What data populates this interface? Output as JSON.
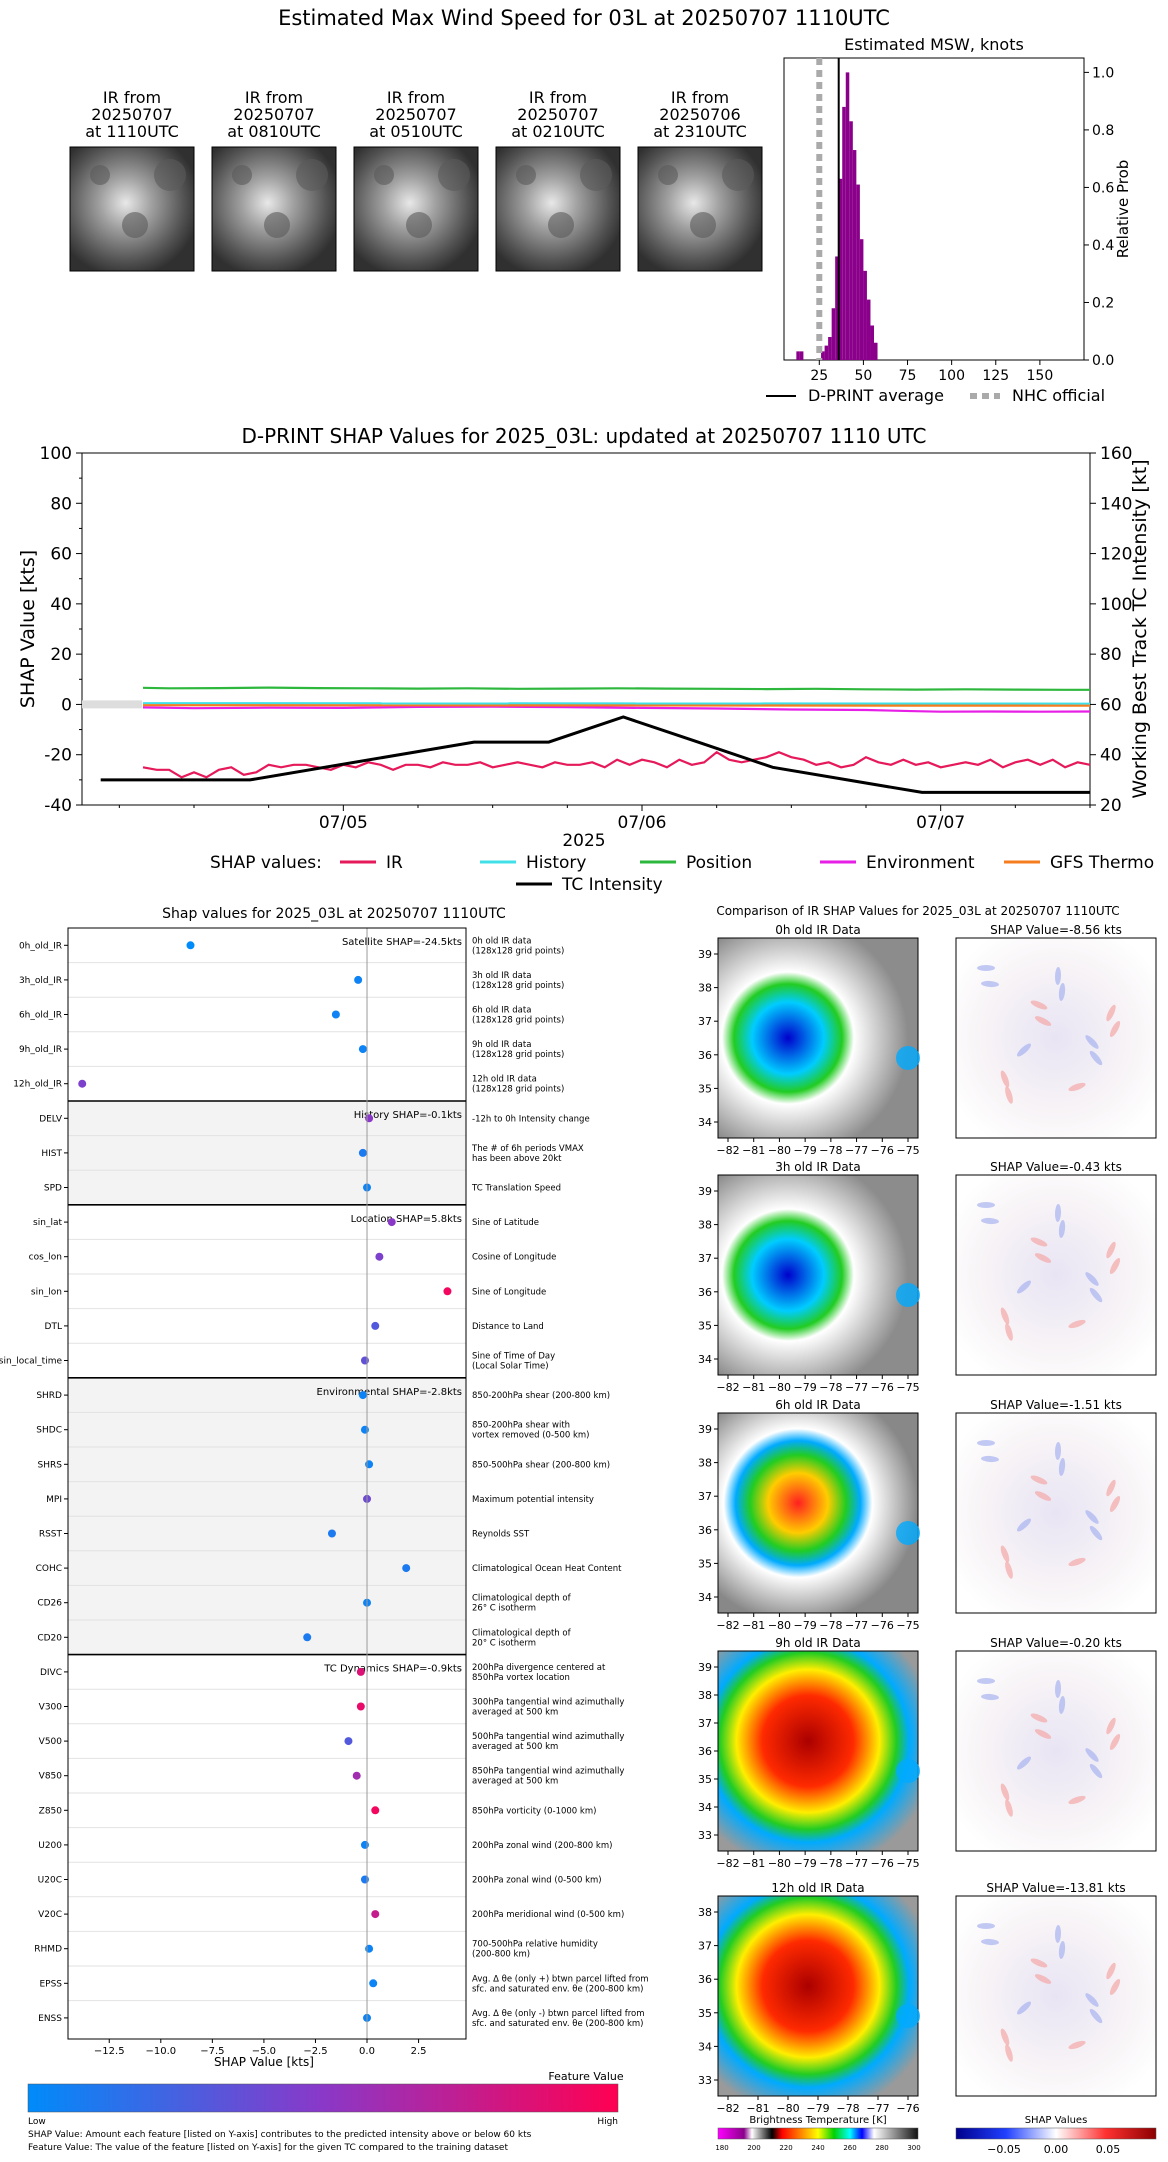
{
  "page_title": "Estimated Max Wind Speed for 03L at 20250707 1110UTC",
  "ir_thumbnails": [
    {
      "l1": "IR from",
      "l2": "20250707",
      "l3": "at 1110UTC"
    },
    {
      "l1": "IR from",
      "l2": "20250707",
      "l3": "at 0810UTC"
    },
    {
      "l1": "IR from",
      "l2": "20250707",
      "l3": "at 0510UTC"
    },
    {
      "l1": "IR from",
      "l2": "20250707",
      "l3": "at 0210UTC"
    },
    {
      "l1": "IR from",
      "l2": "20250706",
      "l3": "at 2310UTC"
    }
  ],
  "colors": {
    "IR": "#e6195a",
    "History": "#40e0e8",
    "Position": "#2db83d",
    "Environment": "#e61ee6",
    "GFS Thermo": "#f57c1f",
    "TC Intensity": "#000000",
    "histogram": "#8b008b",
    "nhc": "#aaaaaa"
  },
  "chart_data": [
    {
      "id": "msw_hist",
      "type": "bar",
      "title": "Estimated MSW, knots",
      "ylabel": "Relative Prob",
      "xlim": [
        5,
        175
      ],
      "ylim": [
        0,
        1.05
      ],
      "xticks": [
        25,
        50,
        75,
        100,
        125,
        150
      ],
      "yticks": [
        0.0,
        0.2,
        0.4,
        0.6,
        0.8,
        1.0
      ],
      "bin_width": 2,
      "bin_start": 27,
      "values": [
        0.03,
        0.05,
        0.08,
        0.18,
        0.36,
        0.63,
        0.88,
        1.0,
        0.83,
        0.73,
        0.61,
        0.42,
        0.31,
        0.21,
        0.12,
        0.06
      ],
      "extra_bars": [
        {
          "x": 13,
          "v": 0.03
        },
        {
          "x": 15,
          "v": 0.03
        }
      ],
      "dprint_average": 36,
      "nhc_official": 25,
      "legend": [
        "D-PRINT average",
        "NHC official"
      ]
    },
    {
      "id": "shap_ts",
      "type": "line",
      "title": "D-PRINT SHAP Values for 2025_03L: updated at 20250707 1110 UTC",
      "ylabel": "SHAP Value [kts]",
      "y2label": "Working Best Track TC Intensity [kt]",
      "xlabel": "2025",
      "xticklabels": [
        "07/05",
        "07/06",
        "07/07"
      ],
      "xtick_hours": [
        24,
        48,
        72
      ],
      "xlim_hours": [
        3,
        84
      ],
      "ylim": [
        -40,
        100
      ],
      "yticks": [
        -40,
        -20,
        0,
        20,
        40,
        60,
        80,
        100
      ],
      "y2lim": [
        20,
        160
      ],
      "y2ticks": [
        20,
        40,
        60,
        80,
        100,
        120,
        140,
        160
      ],
      "legend_prefix": "SHAP values:",
      "series": [
        {
          "name": "IR",
          "hours": [
            7.9,
            9,
            10,
            11,
            12,
            13,
            14,
            15,
            16,
            17,
            18,
            19,
            20,
            21,
            22,
            23,
            24,
            25,
            26,
            27,
            28,
            29,
            30,
            31,
            32,
            33,
            34,
            35,
            36,
            37,
            38,
            39,
            40,
            41,
            42,
            43,
            44,
            45,
            46,
            47,
            48,
            49,
            50,
            51,
            52,
            53,
            54,
            55,
            56,
            57,
            58,
            59,
            60,
            61,
            62,
            63,
            64,
            65,
            66,
            67,
            68,
            69,
            70,
            71,
            72,
            73,
            74,
            75,
            76,
            77,
            78,
            79,
            80,
            81,
            82,
            83,
            84
          ],
          "values": [
            -25,
            -26,
            -26,
            -29,
            -27,
            -29,
            -26,
            -25,
            -28,
            -27,
            -24,
            -25,
            -24,
            -24,
            -25,
            -26,
            -24,
            -25,
            -23,
            -24,
            -26,
            -24,
            -24,
            -25,
            -23,
            -24,
            -24,
            -23,
            -25,
            -24,
            -23,
            -24,
            -25,
            -23,
            -24,
            -24,
            -23,
            -25,
            -22,
            -24,
            -22,
            -23,
            -25,
            -22,
            -24,
            -23,
            -19,
            -22,
            -23,
            -22,
            -21,
            -19,
            -21,
            -22,
            -24,
            -23,
            -25,
            -24,
            -21,
            -23,
            -24,
            -22,
            -24,
            -23,
            -25,
            -24,
            -23,
            -24,
            -22,
            -25,
            -23,
            -22,
            -24,
            -22,
            -25,
            -23,
            -24
          ]
        },
        {
          "name": "History",
          "hours": [
            7.9,
            84
          ],
          "values": [
            0.5,
            0.3
          ]
        },
        {
          "name": "Position",
          "hours": [
            7.9,
            10,
            14,
            18,
            22,
            26,
            30,
            34,
            38,
            42,
            46,
            50,
            54,
            58,
            62,
            66,
            70,
            74,
            78,
            82,
            84
          ],
          "values": [
            6.6,
            6.4,
            6.5,
            6.7,
            6.5,
            6.4,
            6.3,
            6.4,
            6.2,
            6.3,
            6.4,
            6.3,
            6.2,
            6.1,
            6.2,
            6.0,
            5.9,
            6.0,
            5.9,
            5.8,
            5.8
          ]
        },
        {
          "name": "Environment",
          "hours": [
            7.9,
            12,
            18,
            24,
            30,
            36,
            42,
            48,
            54,
            60,
            66,
            70,
            72,
            76,
            80,
            84
          ],
          "values": [
            -1.2,
            -1.5,
            -1.3,
            -1.4,
            -1.0,
            -0.9,
            -1.1,
            -1.4,
            -1.6,
            -2.0,
            -2.2,
            -2.7,
            -2.9,
            -2.8,
            -2.9,
            -2.8
          ]
        },
        {
          "name": "GFS Thermo",
          "hours": [
            7.9,
            84
          ],
          "values": [
            -0.3,
            -0.5
          ]
        },
        {
          "name": "TC Intensity",
          "axis": "y2",
          "hours": [
            4.5,
            16.5,
            34.5,
            40.5,
            46.5,
            52.5,
            58.5,
            64.5,
            70.5,
            84
          ],
          "values": [
            30,
            30,
            45,
            45,
            55,
            45,
            35,
            30,
            25,
            25
          ]
        }
      ]
    },
    {
      "id": "feature_shap",
      "type": "scatter",
      "title": "Shap values for 2025_03L at 20250707 1110UTC",
      "xlabel": "SHAP Value [kts]",
      "xlim": [
        -14.5,
        4.8
      ],
      "xticks": [
        -12.5,
        -10.0,
        -7.5,
        -5.0,
        -2.5,
        0.0,
        2.5
      ],
      "colorbar_title": "Feature Value",
      "colorbar_low": "Low",
      "colorbar_high": "High",
      "groups": [
        {
          "label": "Satellite SHAP=-24.5kts",
          "features": [
            {
              "name": "0h_old_IR",
              "desc": "0h old IR data|(128x128 grid points)",
              "shap": -8.56,
              "fv": 0.0
            },
            {
              "name": "3h_old_IR",
              "desc": "3h old IR data|(128x128 grid points)",
              "shap": -0.43,
              "fv": 0.05
            },
            {
              "name": "6h_old_IR",
              "desc": "6h old IR data|(128x128 grid points)",
              "shap": -1.51,
              "fv": 0.05
            },
            {
              "name": "9h_old_IR",
              "desc": "9h old IR data|(128x128 grid points)",
              "shap": -0.2,
              "fv": 0.05
            },
            {
              "name": "12h_old_IR",
              "desc": "12h old IR data|(128x128 grid points)",
              "shap": -13.81,
              "fv": 0.45
            }
          ]
        },
        {
          "label": "History SHAP=-0.1kts",
          "features": [
            {
              "name": "DELV",
              "desc": "-12h to 0h Intensity change",
              "shap": 0.1,
              "fv": 0.5
            },
            {
              "name": "HIST",
              "desc": "The # of 6h periods VMAX|has been above 20kt",
              "shap": -0.2,
              "fv": 0.1
            },
            {
              "name": "SPD",
              "desc": "TC Translation Speed",
              "shap": 0.0,
              "fv": 0.05
            }
          ]
        },
        {
          "label": "Location SHAP=5.8kts",
          "features": [
            {
              "name": "sin_lat",
              "desc": "Sine of Latitude",
              "shap": 1.2,
              "fv": 0.5
            },
            {
              "name": "cos_lon",
              "desc": "Cosine of Longitude",
              "shap": 0.6,
              "fv": 0.45
            },
            {
              "name": "sin_lon",
              "desc": "Sine of Longitude",
              "shap": 3.9,
              "fv": 0.95
            },
            {
              "name": "DTL",
              "desc": "Distance to Land",
              "shap": 0.4,
              "fv": 0.3
            },
            {
              "name": "sin_local_time",
              "desc": "Sine of Time of Day|(Local Solar Time)",
              "shap": -0.1,
              "fv": 0.35
            }
          ]
        },
        {
          "label": "Environmental SHAP=-2.8kts",
          "features": [
            {
              "name": "SHRD",
              "desc": "850-200hPa shear (200-800 km)",
              "shap": -0.2,
              "fv": 0.05
            },
            {
              "name": "SHDC",
              "desc": "850-200hPa shear with|vortex removed (0-500 km)",
              "shap": -0.1,
              "fv": 0.05
            },
            {
              "name": "SHRS",
              "desc": "850-500hPa shear (200-800 km)",
              "shap": 0.1,
              "fv": 0.05
            },
            {
              "name": "MPI",
              "desc": "Maximum potential intensity",
              "shap": 0.0,
              "fv": 0.4
            },
            {
              "name": "RSST",
              "desc": "Reynolds SST",
              "shap": -1.7,
              "fv": 0.1
            },
            {
              "name": "COHC",
              "desc": "Climatological Ocean Heat Content",
              "shap": 1.9,
              "fv": 0.1
            },
            {
              "name": "CD26",
              "desc": "Climatological depth of|26° C isotherm",
              "shap": 0.0,
              "fv": 0.05
            },
            {
              "name": "CD20",
              "desc": "Climatological depth of|20° C isotherm",
              "shap": -2.9,
              "fv": 0.1
            }
          ]
        },
        {
          "label": "TC Dynamics SHAP=-0.9kts",
          "features": [
            {
              "name": "DIVC",
              "desc": "200hPa divergence centered at|850hPa vortex location",
              "shap": -0.3,
              "fv": 0.85
            },
            {
              "name": "V300",
              "desc": "300hPa tangential wind azimuthally|averaged at 500 km",
              "shap": -0.3,
              "fv": 0.9
            },
            {
              "name": "V500",
              "desc": "500hPa tangential wind azimuthally|averaged at 500 km",
              "shap": -0.9,
              "fv": 0.3
            },
            {
              "name": "V850",
              "desc": "850hPa tangential wind azimuthally|averaged at 500 km",
              "shap": -0.5,
              "fv": 0.6
            },
            {
              "name": "Z850",
              "desc": "850hPa vorticity (0-1000 km)",
              "shap": 0.4,
              "fv": 0.95
            },
            {
              "name": "U200",
              "desc": "200hPa zonal wind (200-800 km)",
              "shap": -0.1,
              "fv": 0.05
            },
            {
              "name": "U20C",
              "desc": "200hPa zonal wind (0-500 km)",
              "shap": -0.1,
              "fv": 0.1
            },
            {
              "name": "V20C",
              "desc": "200hPa meridional wind (0-500 km)",
              "shap": 0.4,
              "fv": 0.75
            },
            {
              "name": "RHMD",
              "desc": "700-500hPa relative humidity|(200-800 km)",
              "shap": 0.1,
              "fv": 0.05
            },
            {
              "name": "EPSS",
              "desc": "Avg. Δ θe (only +) btwn parcel lifted from|sfc. and saturated env. θe (200-800 km)",
              "shap": 0.3,
              "fv": 0.05
            },
            {
              "name": "ENSS",
              "desc": "Avg. Δ θe (only -) btwn parcel lifted from|sfc. and saturated env. θe (200-800 km)",
              "shap": 0.0,
              "fv": 0.05
            }
          ]
        }
      ],
      "footnote1": "SHAP Value: Amount each feature [listed on Y-axis] contributes to the predicted intensity above or below 60 kts",
      "footnote2": "Feature Value: The value of the feature [listed on Y-axis] for the given TC compared to the training dataset"
    },
    {
      "id": "ir_compare",
      "type": "heatmap",
      "title": "Comparison of IR SHAP Values for 2025_03L at 20250707 1110UTC",
      "rows": [
        {
          "ir_title": "0h old IR Data",
          "shap_title": "SHAP Value=-8.56 kts",
          "yticks": [
            34,
            35,
            36,
            37,
            38,
            39
          ],
          "xticks": [
            -82,
            -81,
            -80,
            -79,
            -78,
            -77,
            -76,
            -75
          ]
        },
        {
          "ir_title": "3h old IR Data",
          "shap_title": "SHAP Value=-0.43 kts",
          "yticks": [
            34,
            35,
            36,
            37,
            38,
            39
          ],
          "xticks": [
            -82,
            -81,
            -80,
            -79,
            -78,
            -77,
            -76,
            -75
          ]
        },
        {
          "ir_title": "6h old IR Data",
          "shap_title": "SHAP Value=-1.51 kts",
          "yticks": [
            34,
            35,
            36,
            37,
            38,
            39
          ],
          "xticks": [
            -82,
            -81,
            -80,
            -79,
            -78,
            -77,
            -76,
            -75
          ]
        },
        {
          "ir_title": "9h old IR Data",
          "shap_title": "SHAP Value=-0.20 kts",
          "yticks": [
            33,
            34,
            35,
            36,
            37,
            38,
            39
          ],
          "xticks": [
            -82,
            -81,
            -80,
            -79,
            -78,
            -77,
            -76,
            -75
          ]
        },
        {
          "ir_title": "12h old IR Data",
          "shap_title": "SHAP Value=-13.81 kts",
          "yticks": [
            33,
            34,
            35,
            36,
            37,
            38
          ],
          "xticks": [
            -82,
            -81,
            -80,
            -79,
            -78,
            -77,
            -76
          ]
        }
      ],
      "bt_colorbar_label": "Brightness Temperature [K]",
      "bt_ticks": [
        180,
        200,
        220,
        240,
        260,
        280,
        300
      ],
      "shap_colorbar_label": "SHAP Values",
      "shap_ticks": [
        "−0.05",
        "0.00",
        "0.05"
      ]
    }
  ]
}
